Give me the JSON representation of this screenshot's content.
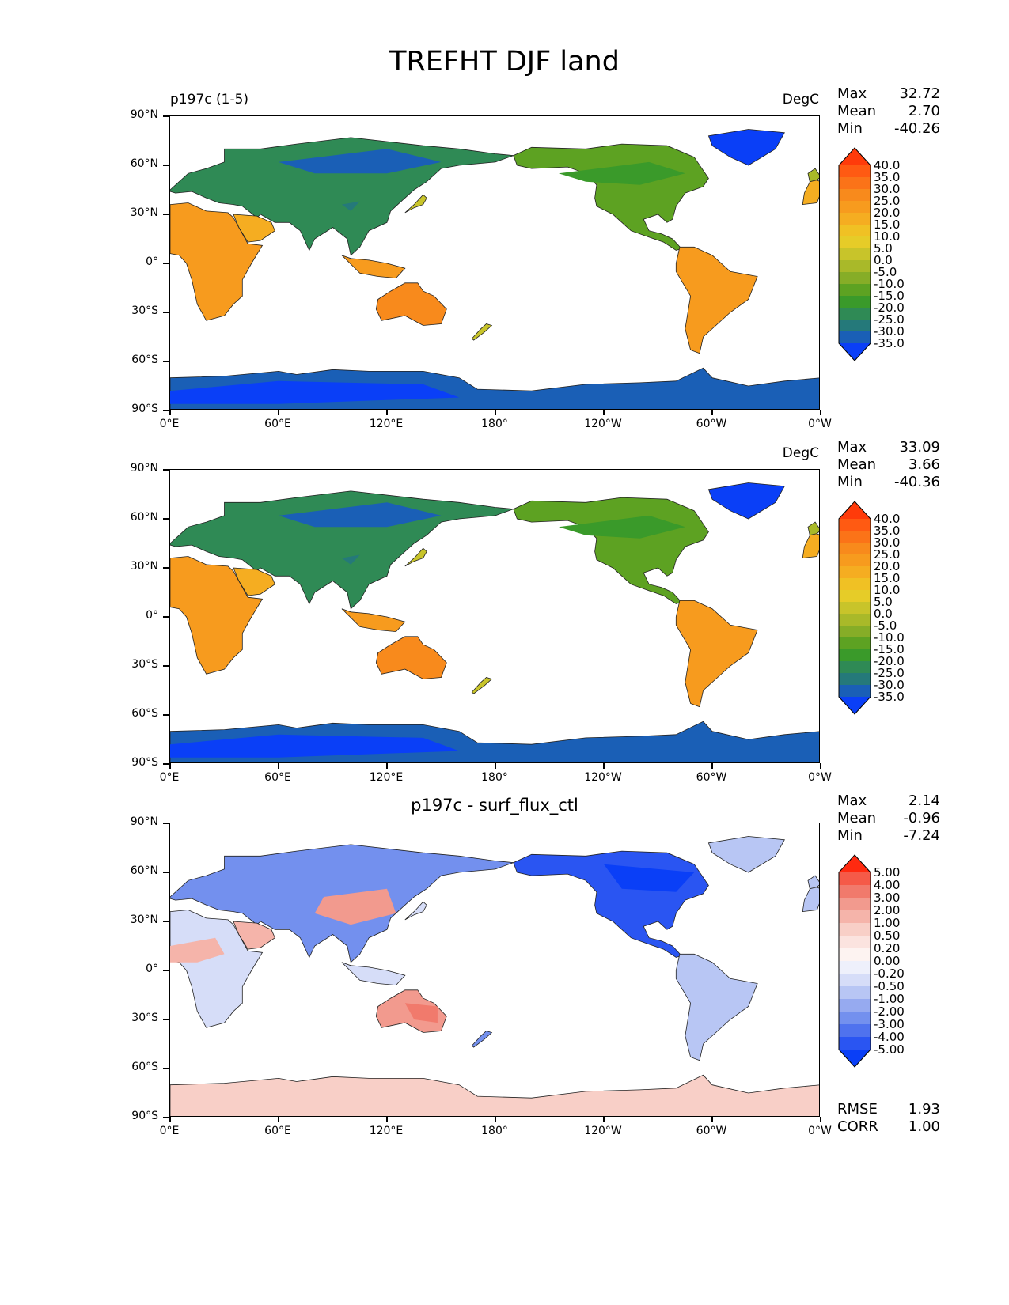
{
  "figure_title": "TREFHT DJF land",
  "axes": {
    "y_labels": [
      "90°N",
      "60°N",
      "30°N",
      "0°",
      "30°S",
      "60°S",
      "90°S"
    ],
    "x_labels": [
      "0°E",
      "60°E",
      "120°E",
      "180°",
      "120°W",
      "60°W",
      "0°W"
    ]
  },
  "panels": [
    {
      "title_left": "p197c (1-5)",
      "title_center": "",
      "units": "DegC",
      "stats": [
        {
          "label": "Max",
          "value": "32.72"
        },
        {
          "label": "Mean",
          "value": "2.70"
        },
        {
          "label": "Min",
          "value": "-40.26"
        }
      ],
      "colorbar": {
        "labels": [
          "40.0",
          "35.0",
          "30.0",
          "25.0",
          "20.0",
          "15.0",
          "10.0",
          "5.0",
          "0.0",
          "-5.0",
          "-10.0",
          "-15.0",
          "-20.0",
          "-25.0",
          "-30.0",
          "-35.0"
        ],
        "colors": [
          "#ff3b0a",
          "#ff5a12",
          "#fb7318",
          "#f88a1c",
          "#f79b1e",
          "#f5ad21",
          "#f0c124",
          "#e6cc28",
          "#c8c42a",
          "#a9b929",
          "#86ad27",
          "#5da222",
          "#3a9a2a",
          "#2f8a55",
          "#25797a",
          "#1a5fb6",
          "#0a3ff7"
        ]
      }
    },
    {
      "title_left": "",
      "title_center": "",
      "units": "DegC",
      "stats": [
        {
          "label": "Max",
          "value": "33.09"
        },
        {
          "label": "Mean",
          "value": "3.66"
        },
        {
          "label": "Min",
          "value": "-40.36"
        }
      ],
      "colorbar": {
        "labels": [
          "40.0",
          "35.0",
          "30.0",
          "25.0",
          "20.0",
          "15.0",
          "10.0",
          "5.0",
          "0.0",
          "-5.0",
          "-10.0",
          "-15.0",
          "-20.0",
          "-25.0",
          "-30.0",
          "-35.0"
        ],
        "colors": [
          "#ff3b0a",
          "#ff5a12",
          "#fb7318",
          "#f88a1c",
          "#f79b1e",
          "#f5ad21",
          "#f0c124",
          "#e6cc28",
          "#c8c42a",
          "#a9b929",
          "#86ad27",
          "#5da222",
          "#3a9a2a",
          "#2f8a55",
          "#25797a",
          "#1a5fb6",
          "#0a3ff7"
        ]
      }
    },
    {
      "title_left": "",
      "title_center": "p197c - surf_flux_ctl",
      "units": "",
      "stats": [
        {
          "label": "Max",
          "value": "2.14"
        },
        {
          "label": "Mean",
          "value": "-0.96"
        },
        {
          "label": "Min",
          "value": "-7.24"
        }
      ],
      "colorbar": {
        "labels": [
          "5.00",
          "4.00",
          "3.00",
          "2.00",
          "1.00",
          "0.50",
          "0.20",
          "0.00",
          "-0.20",
          "-0.50",
          "-1.00",
          "-2.00",
          "-3.00",
          "-4.00",
          "-5.00"
        ],
        "colors": [
          "#ff2a10",
          "#f55a48",
          "#f17a6c",
          "#f29a8e",
          "#f5b4aa",
          "#f8cfc7",
          "#fbe3df",
          "#fdf3f1",
          "#eef0fb",
          "#d6ddf8",
          "#b8c6f4",
          "#96aaf0",
          "#7390ee",
          "#4f72ee",
          "#2a55f2",
          "#0a3ff7"
        ]
      },
      "bottom_stats": [
        {
          "label": "RMSE",
          "value": "1.93"
        },
        {
          "label": "CORR",
          "value": "1.00"
        }
      ]
    }
  ]
}
